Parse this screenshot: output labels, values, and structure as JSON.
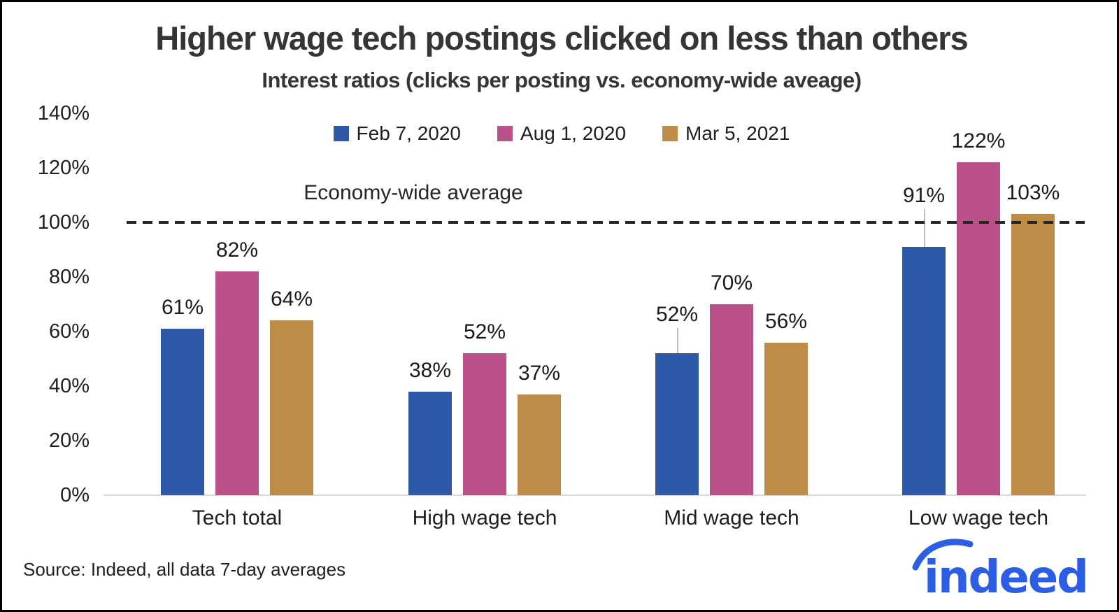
{
  "title": "Higher wage tech postings clicked on less than others",
  "subtitle": "Interest ratios (clicks per posting vs. economy-wide aveage)",
  "source_note": "Source: Indeed, all data 7-day averages",
  "brand": {
    "logo_text": "indeed",
    "logo_color": "#2c5de5"
  },
  "chart_data": {
    "type": "bar",
    "title": "Higher wage tech postings clicked on less than others",
    "subtitle": "Interest ratios (clicks per posting vs. economy-wide aveage)",
    "categories": [
      "Tech total",
      "High wage tech",
      "Mid wage tech",
      "Low wage tech"
    ],
    "series": [
      {
        "name": "Feb 7, 2020",
        "color": "#2e59a7",
        "values": [
          61,
          38,
          52,
          91
        ]
      },
      {
        "name": "Aug 1, 2020",
        "color": "#ba5289",
        "values": [
          82,
          52,
          70,
          122
        ]
      },
      {
        "name": "Mar 5, 2021",
        "color": "#bd8c47",
        "values": [
          64,
          37,
          56,
          103
        ]
      }
    ],
    "unit": "%",
    "value_labels": true,
    "ylim": [
      0,
      140
    ],
    "ytick_labels": [
      "0%",
      "20%",
      "40%",
      "60%",
      "80%",
      "100%",
      "120%",
      "140%"
    ],
    "reference_line": {
      "value": 100,
      "label": "Economy-wide average"
    },
    "grid": false,
    "legend_position": "top-center"
  }
}
